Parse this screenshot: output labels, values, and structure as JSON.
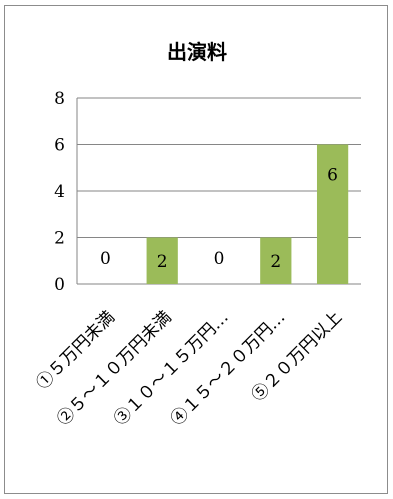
{
  "chart_data": {
    "type": "bar",
    "title": "出演料",
    "categories": [
      "①５万円未満",
      "②５～１０万円未満",
      "③１０～１５万円…",
      "④１５～２０万円…",
      "⑤２０万円以上"
    ],
    "values": [
      0,
      2,
      0,
      2,
      6
    ],
    "data_labels": [
      "0",
      "2",
      "0",
      "2",
      "6"
    ],
    "ylim": [
      0,
      8
    ],
    "yticks": [
      "0",
      "2",
      "4",
      "6",
      "8"
    ],
    "grid": true,
    "legend": "none",
    "bar_color": "#9bbb59",
    "grid_color": "#868686"
  }
}
